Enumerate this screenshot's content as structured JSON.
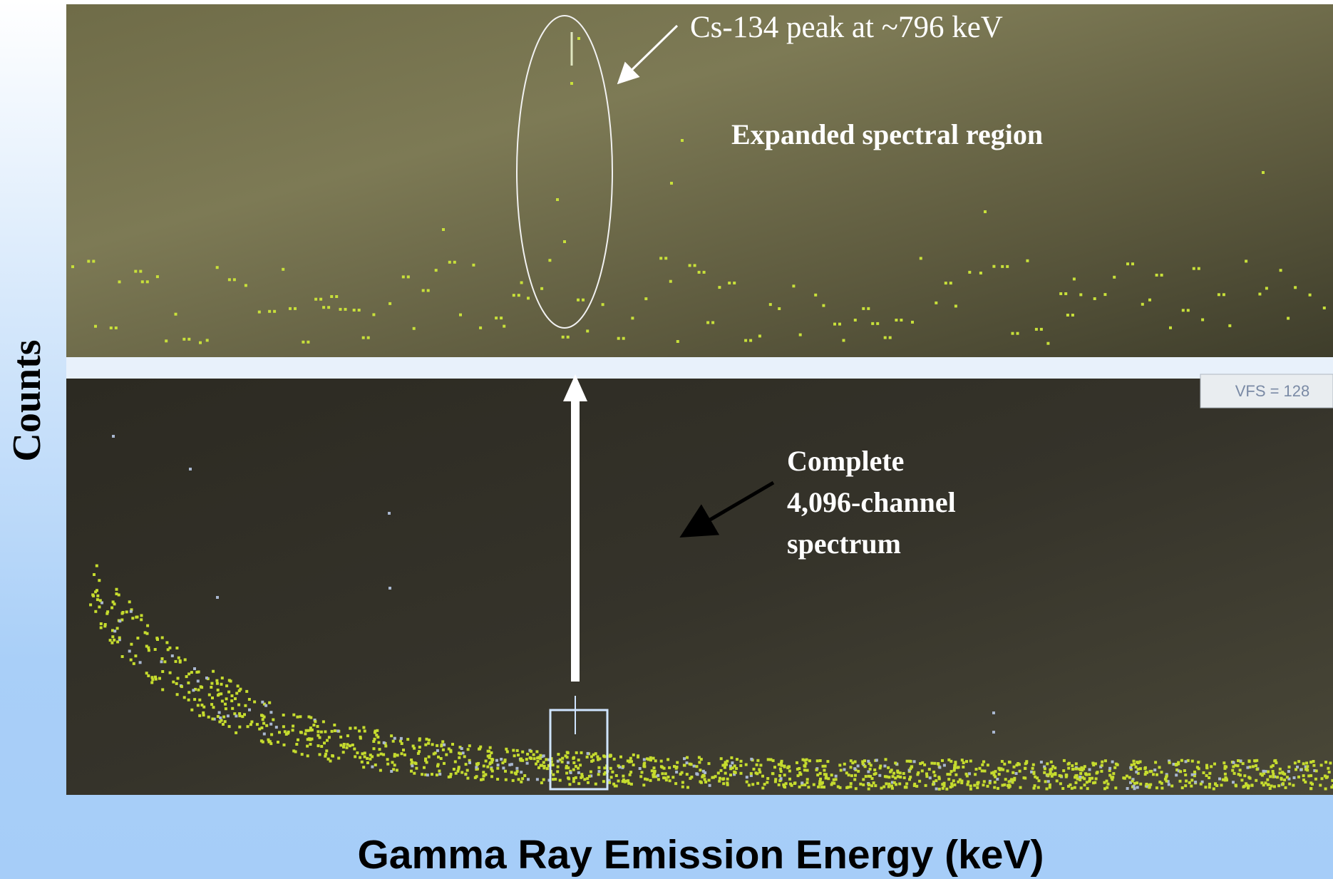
{
  "annotations": {
    "peak": "Cs-134 peak at ~796 keV",
    "expanded": "Expanded spectral region",
    "complete": [
      "Complete",
      "4,096-channel",
      "spectrum"
    ]
  },
  "screen": {
    "vfs": "VFS = 128"
  },
  "axes": {
    "y_label": "Counts",
    "x_label": "Gamma Ray Emission Energy (keV)"
  }
}
